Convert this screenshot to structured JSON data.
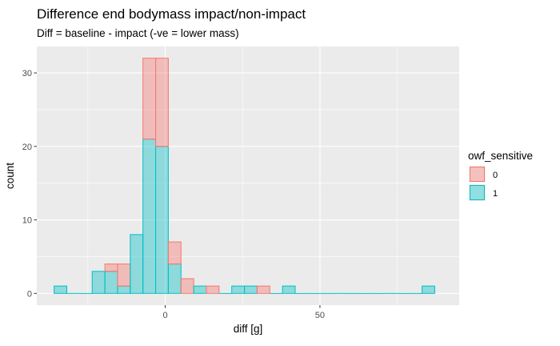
{
  "chart_data": {
    "type": "bar",
    "subtype": "stacked-histogram",
    "title": "Difference end bodymass impact/non-impact",
    "subtitle": "Diff = baseline - impact (-ve = lower mass)",
    "xlabel": "diff [g]",
    "ylabel": "count",
    "xlim": [
      -41.5,
      95
    ],
    "ylim": [
      -1.6,
      33.6
    ],
    "x_ticks": [
      0,
      50
    ],
    "y_ticks": [
      0,
      10,
      20,
      30
    ],
    "bin_width": 4.1,
    "bins": [
      {
        "x0": -35.9,
        "x1": -31.8,
        "group0": 0,
        "group1": 1
      },
      {
        "x0": -31.8,
        "x1": -27.7,
        "group0": 0,
        "group1": 0
      },
      {
        "x0": -27.7,
        "x1": -23.6,
        "group0": 0,
        "group1": 0
      },
      {
        "x0": -23.6,
        "x1": -19.5,
        "group0": 0,
        "group1": 3
      },
      {
        "x0": -19.5,
        "x1": -15.4,
        "group0": 1,
        "group1": 3
      },
      {
        "x0": -15.4,
        "x1": -11.3,
        "group0": 3,
        "group1": 1
      },
      {
        "x0": -11.3,
        "x1": -7.2,
        "group0": 0,
        "group1": 8
      },
      {
        "x0": -7.2,
        "x1": -3.1,
        "group0": 11,
        "group1": 21
      },
      {
        "x0": -3.1,
        "x1": 1.0,
        "group0": 12,
        "group1": 20
      },
      {
        "x0": 1.0,
        "x1": 5.1,
        "group0": 3,
        "group1": 4
      },
      {
        "x0": 5.1,
        "x1": 9.2,
        "group0": 2,
        "group1": 0
      },
      {
        "x0": 9.2,
        "x1": 13.3,
        "group0": 0,
        "group1": 1
      },
      {
        "x0": 13.3,
        "x1": 17.4,
        "group0": 1,
        "group1": 0
      },
      {
        "x0": 17.4,
        "x1": 21.5,
        "group0": 0,
        "group1": 0
      },
      {
        "x0": 21.5,
        "x1": 25.6,
        "group0": 0,
        "group1": 1
      },
      {
        "x0": 25.6,
        "x1": 29.7,
        "group0": 0,
        "group1": 1
      },
      {
        "x0": 29.7,
        "x1": 33.8,
        "group0": 1,
        "group1": 0
      },
      {
        "x0": 33.8,
        "x1": 37.9,
        "group0": 0,
        "group1": 0
      },
      {
        "x0": 37.9,
        "x1": 42.0,
        "group0": 0,
        "group1": 1
      },
      {
        "x0": 42.0,
        "x1": 46.1,
        "group0": 0,
        "group1": 0
      },
      {
        "x0": 46.1,
        "x1": 50.2,
        "group0": 0,
        "group1": 0
      },
      {
        "x0": 50.2,
        "x1": 54.3,
        "group0": 0,
        "group1": 0
      },
      {
        "x0": 54.3,
        "x1": 58.4,
        "group0": 0,
        "group1": 0
      },
      {
        "x0": 58.4,
        "x1": 62.5,
        "group0": 0,
        "group1": 0
      },
      {
        "x0": 62.5,
        "x1": 66.6,
        "group0": 0,
        "group1": 0
      },
      {
        "x0": 66.6,
        "x1": 70.7,
        "group0": 0,
        "group1": 0
      },
      {
        "x0": 70.7,
        "x1": 74.8,
        "group0": 0,
        "group1": 0
      },
      {
        "x0": 74.8,
        "x1": 78.9,
        "group0": 0,
        "group1": 0
      },
      {
        "x0": 78.9,
        "x1": 83.0,
        "group0": 0,
        "group1": 0
      },
      {
        "x0": 83.0,
        "x1": 87.1,
        "group0": 0,
        "group1": 1
      }
    ],
    "series": [
      {
        "name": "0",
        "key": "group0",
        "fill": "#F8766D",
        "stroke": "#F8766D"
      },
      {
        "name": "1",
        "key": "group1",
        "fill": "#00BFC4",
        "stroke": "#00BFC4"
      }
    ],
    "legend": {
      "title": "owf_sensitive",
      "position": "right"
    },
    "grid": true,
    "panel_background": "#EBEBEB",
    "grid_color": "#FFFFFF"
  }
}
